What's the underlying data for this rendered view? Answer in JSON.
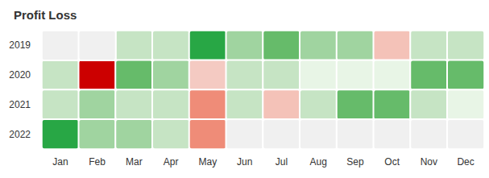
{
  "chart_data": {
    "type": "heatmap",
    "title": "Profit Loss",
    "categories": [
      "Jan",
      "Feb",
      "Mar",
      "Apr",
      "May",
      "Jun",
      "Jul",
      "Aug",
      "Sep",
      "Oct",
      "Nov",
      "Dec"
    ],
    "y_categories": [
      "2019",
      "2020",
      "2021",
      "2022"
    ],
    "cells": [
      [
        null,
        null,
        5,
        5,
        10,
        6,
        7.5,
        6,
        6,
        -2.5,
        5,
        5
      ],
      [
        5,
        -10,
        7.5,
        6,
        -2,
        5,
        5,
        2.5,
        2.5,
        2.5,
        7.5,
        7.5
      ],
      [
        5,
        6,
        5,
        5,
        -5,
        5,
        -2.5,
        5,
        7.5,
        7.5,
        5,
        2.5
      ],
      [
        10,
        6,
        6,
        5,
        -5,
        null,
        null,
        null,
        null,
        null,
        null,
        null
      ]
    ],
    "color_range": [
      -10,
      10
    ]
  }
}
